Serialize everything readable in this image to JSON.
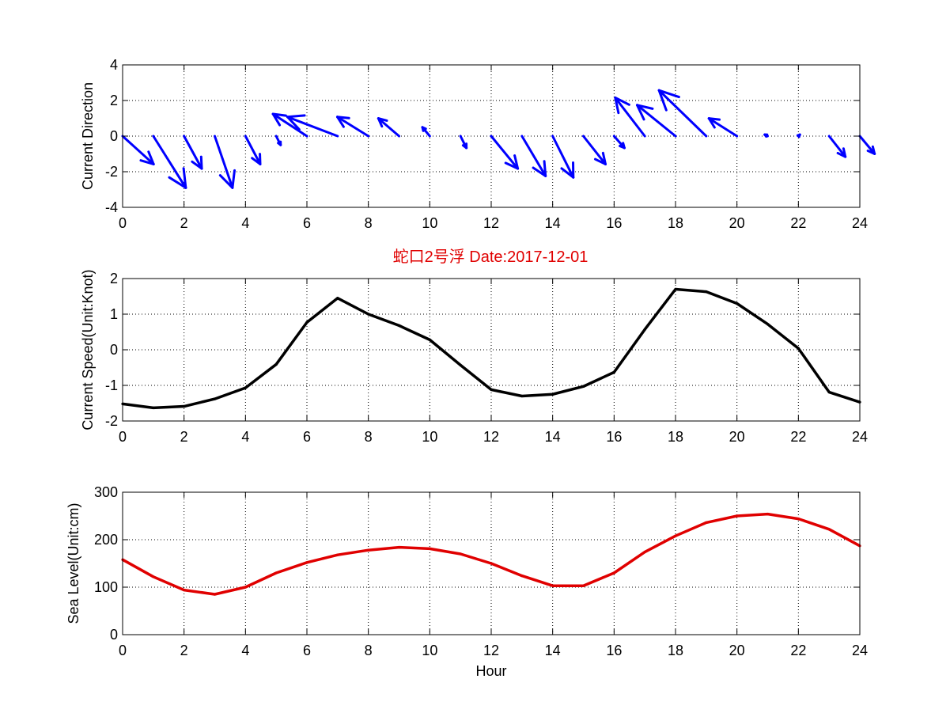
{
  "title": "蛇口2号浮   Date:2017-12-01",
  "title_color": "#e00000",
  "chart_data": [
    {
      "type": "quiver",
      "ylabel": "Current Direction",
      "xlim": [
        0,
        24
      ],
      "ylim": [
        -4,
        4
      ],
      "xticks": [
        0,
        2,
        4,
        6,
        8,
        10,
        12,
        14,
        16,
        18,
        20,
        22,
        24
      ],
      "yticks": [
        -4,
        -2,
        0,
        2,
        4
      ],
      "grid": true,
      "color": "#0000ff",
      "x": [
        0,
        1,
        2,
        3,
        4,
        5,
        6,
        7,
        8,
        9,
        10,
        11,
        12,
        13,
        14,
        15,
        16,
        17,
        18,
        19,
        20,
        21,
        22,
        23,
        24
      ],
      "u": [
        2.1,
        2.2,
        1.2,
        1.2,
        1.0,
        0.3,
        -2.3,
        -3.4,
        -2.1,
        -1.4,
        -0.5,
        0.4,
        1.8,
        1.6,
        1.4,
        1.5,
        0.7,
        -2.0,
        -2.6,
        -3.2,
        -1.9,
        -0.2,
        0.1,
        1.1,
        1.0
      ],
      "v": [
        -1.9,
        -3.5,
        -2.2,
        -3.5,
        -1.9,
        -0.6,
        1.5,
        1.3,
        1.3,
        1.2,
        0.6,
        -0.8,
        -2.2,
        -2.7,
        -2.8,
        -1.9,
        -0.8,
        2.6,
        2.1,
        3.1,
        1.2,
        0.1,
        0.1,
        -1.4,
        -1.2
      ]
    },
    {
      "type": "line",
      "ylabel": "Current Speed(Unit:Knot)",
      "xlim": [
        0,
        24
      ],
      "ylim": [
        -2,
        2
      ],
      "xticks": [
        0,
        2,
        4,
        6,
        8,
        10,
        12,
        14,
        16,
        18,
        20,
        22,
        24
      ],
      "yticks": [
        -2,
        -1,
        0,
        1,
        2
      ],
      "grid": true,
      "color": "#000000",
      "x": [
        0,
        1,
        2,
        3,
        4,
        5,
        6,
        7,
        8,
        9,
        10,
        11,
        12,
        13,
        14,
        15,
        16,
        17,
        18,
        19,
        20,
        21,
        22,
        23,
        24
      ],
      "y": [
        -1.52,
        -1.63,
        -1.59,
        -1.38,
        -1.07,
        -0.41,
        0.77,
        1.45,
        1.0,
        0.68,
        0.28,
        -0.43,
        -1.12,
        -1.3,
        -1.25,
        -1.03,
        -0.63,
        0.57,
        1.7,
        1.63,
        1.3,
        0.72,
        0.04,
        -1.19,
        -1.47
      ]
    },
    {
      "type": "line",
      "ylabel": "Sea Level(Unit:cm)",
      "xlabel": "Hour",
      "xlim": [
        0,
        24
      ],
      "ylim": [
        0,
        300
      ],
      "xticks": [
        0,
        2,
        4,
        6,
        8,
        10,
        12,
        14,
        16,
        18,
        20,
        22,
        24
      ],
      "yticks": [
        0,
        100,
        200,
        300
      ],
      "grid": true,
      "color": "#e00000",
      "x": [
        0,
        1,
        2,
        3,
        4,
        5,
        6,
        7,
        8,
        9,
        10,
        11,
        12,
        13,
        14,
        15,
        16,
        17,
        18,
        19,
        20,
        21,
        22,
        23,
        24
      ],
      "y": [
        158,
        122,
        94,
        85,
        100,
        130,
        152,
        168,
        178,
        184,
        181,
        170,
        150,
        124,
        103,
        103,
        130,
        174,
        208,
        236,
        250,
        254,
        244,
        222,
        187
      ]
    }
  ]
}
